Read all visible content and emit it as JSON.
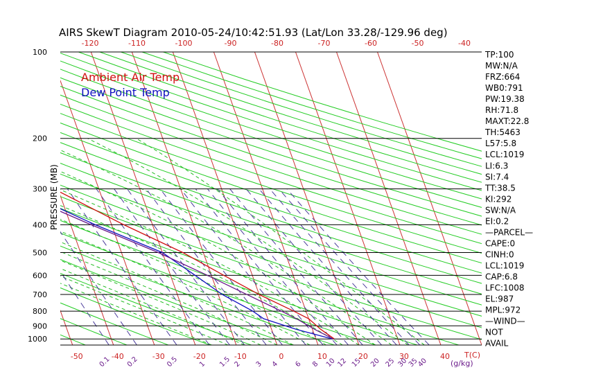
{
  "chart_data": {
    "type": "line",
    "title": "AIRS SkewT Diagram 2010-05-24/10:42:51.93 (Lat/Lon 33.28/-129.96 deg)",
    "ylabel": "PRESSURE (MB)",
    "y_scale": "log",
    "ylim": [
      1050,
      100
    ],
    "xlim_bottom": [
      -53,
      50
    ],
    "grid": true,
    "pressure_ticks": [
      100,
      200,
      300,
      400,
      500,
      600,
      700,
      800,
      900,
      1000
    ],
    "temp_ticks_bottom": [
      "-50",
      "-40",
      "-30",
      "-20",
      "-10",
      "0",
      "10",
      "20",
      "30",
      "40"
    ],
    "temp_unit_label": "T(C)",
    "temp_ticks_top": [
      "-120",
      "-110",
      "-100",
      "-90",
      "-80",
      "-70",
      "-60",
      "-50",
      "-40"
    ],
    "mixing_ratio_labels": [
      "0.1",
      "0.2",
      "0.5",
      "1",
      "1.5",
      "2",
      "3",
      "4",
      "6",
      "8",
      "10",
      "12",
      "15",
      "20",
      "25",
      "30",
      "35",
      "40"
    ],
    "mixing_ratio_unit": "(g/kg)",
    "legend": [
      "Ambient Air Temp",
      "Dew Point Temp"
    ],
    "legend_position": "top-left",
    "series": [
      {
        "name": "Ambient Air Temp",
        "color": "#d01010",
        "points": [
          [
            1000,
            14.5
          ],
          [
            925,
            12
          ],
          [
            850,
            10
          ],
          [
            800,
            7
          ],
          [
            700,
            0
          ],
          [
            600,
            -7
          ],
          [
            500,
            -15
          ],
          [
            400,
            -27
          ],
          [
            300,
            -41
          ],
          [
            250,
            -50
          ],
          [
            200,
            -58
          ],
          [
            150,
            -68
          ],
          [
            100,
            -78
          ]
        ]
      },
      {
        "name": "Dew Point Temp",
        "color": "#1010c0",
        "points": [
          [
            1000,
            14
          ],
          [
            925,
            6
          ],
          [
            850,
            -1
          ],
          [
            800,
            -3
          ],
          [
            700,
            -9
          ],
          [
            600,
            -14
          ],
          [
            500,
            -20
          ],
          [
            400,
            -34
          ],
          [
            300,
            -50
          ],
          [
            250,
            -60
          ],
          [
            200,
            -70
          ],
          [
            150,
            -83
          ],
          [
            100,
            -100
          ]
        ]
      },
      {
        "name": "",
        "color": "#6a1a8a",
        "points": [
          [
            1000,
            14.2
          ],
          [
            925,
            10.5
          ],
          [
            850,
            7
          ],
          [
            800,
            4
          ],
          [
            700,
            -3
          ],
          [
            600,
            -11
          ],
          [
            500,
            -21
          ],
          [
            400,
            -35
          ],
          [
            300,
            -52
          ],
          [
            200,
            -78
          ],
          [
            150,
            -93
          ],
          [
            100,
            -113
          ]
        ]
      }
    ],
    "indices": [
      "TP:100",
      "MW:N/A",
      "FRZ:664",
      "WB0:791",
      "PW:19.38",
      "RH:71.8",
      "MAXT:22.8",
      "TH:5463",
      "L57:5.8",
      "LCL:1019",
      "LI:6.3",
      "SI:7.4",
      "TT:38.5",
      "KI:292",
      "SW:N/A",
      "EI:0.2",
      "—PARCEL—",
      "CAPE:0",
      "CINH:0",
      "LCL:1019",
      "CAP:6.8",
      "LFC:1008",
      "EL:987",
      "MPL:972",
      "—WIND—",
      "NOT",
      "AVAIL"
    ],
    "colors": {
      "isotherm": "#cc3333",
      "dry_adiabat": "#22cc22",
      "moist_adiabat": "#22bb22",
      "mixing_ratio": "#4a3a9a",
      "isobar": "#000000",
      "axis_labels_bottom": "#cc2222",
      "mixing_labels": "#6a1a8a",
      "title": "#000000"
    }
  }
}
